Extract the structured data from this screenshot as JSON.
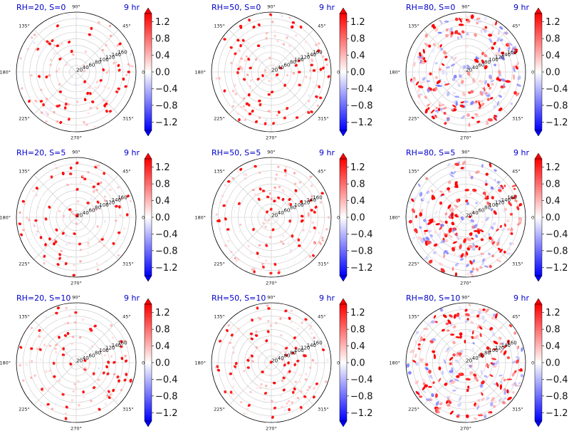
{
  "chart_data": {
    "type": "polar-scatter-grid",
    "rows": 3,
    "cols": 3,
    "colormap": "bwr",
    "color_range": [
      -1.4,
      1.4
    ],
    "colorbar_ticks": [
      "1.2",
      "0.8",
      "0.4",
      "0.0",
      "−0.4",
      "−0.8",
      "−1.2"
    ],
    "colorbar_tick_values": [
      1.2,
      0.8,
      0.4,
      0.0,
      -0.4,
      -0.8,
      -1.2
    ],
    "angle_labels": [
      "0°",
      "45°",
      "90°",
      "135°",
      "180°",
      "225°",
      "270°",
      "315°"
    ],
    "angle_values": [
      0,
      45,
      90,
      135,
      180,
      225,
      270,
      315
    ],
    "radial_labels": [
      "20",
      "40",
      "60",
      "80",
      "100",
      "120",
      "140",
      "160"
    ],
    "radial_values": [
      20,
      40,
      60,
      80,
      100,
      120,
      140,
      160
    ],
    "rmax": 180,
    "grid": true,
    "panels": [
      {
        "title": "RH=20, S=0",
        "time": "9 hr",
        "rh": 20,
        "s": 0
      },
      {
        "title": "RH=50, S=0",
        "time": "9 hr",
        "rh": 50,
        "s": 0
      },
      {
        "title": "RH=80, S=0",
        "time": "9 hr",
        "rh": 80,
        "s": 0
      },
      {
        "title": "RH=20, S=5",
        "time": "9 hr",
        "rh": 20,
        "s": 5
      },
      {
        "title": "RH=50, S=5",
        "time": "9 hr",
        "rh": 50,
        "s": 5
      },
      {
        "title": "RH=80, S=5",
        "time": "9 hr",
        "rh": 80,
        "s": 5
      },
      {
        "title": "RH=20, S=10",
        "time": "9 hr",
        "rh": 20,
        "s": 10
      },
      {
        "title": "RH=50, S=10",
        "time": "9 hr",
        "rh": 50,
        "s": 10
      },
      {
        "title": "RH=80, S=10",
        "time": "9 hr",
        "rh": 80,
        "s": 10
      }
    ]
  }
}
